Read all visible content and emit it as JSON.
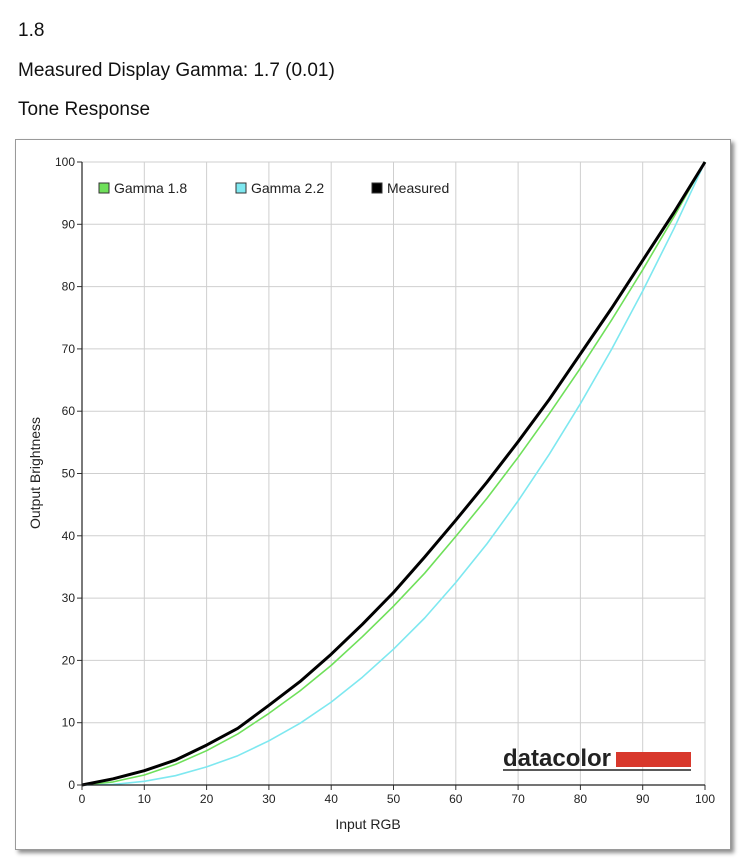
{
  "header": {
    "gamma_setting": "1.8",
    "measured_text": "Measured Display Gamma: 1.7 (0.01)",
    "section_title": "Tone Response"
  },
  "brand": {
    "name": "datacolor",
    "accent_color": "#d8382c"
  },
  "chart_data": {
    "type": "line",
    "xlabel": "Input RGB",
    "ylabel": "Output Brightness",
    "xlim": [
      0,
      100
    ],
    "ylim": [
      0,
      100
    ],
    "xticks": [
      0,
      10,
      20,
      30,
      40,
      50,
      60,
      70,
      80,
      90,
      100
    ],
    "yticks": [
      0,
      10,
      20,
      30,
      40,
      50,
      60,
      70,
      80,
      90,
      100
    ],
    "grid": true,
    "legend_position": "top-left",
    "x": [
      0,
      5,
      10,
      15,
      20,
      25,
      30,
      35,
      40,
      45,
      50,
      55,
      60,
      65,
      70,
      75,
      80,
      85,
      90,
      95,
      100
    ],
    "series": [
      {
        "name": "Gamma 1.8",
        "color": "#6fe05a",
        "values": [
          0,
          0.5,
          1.6,
          3.3,
          5.5,
          8.2,
          11.5,
          15.1,
          19.2,
          23.8,
          28.7,
          34.0,
          39.9,
          46.0,
          52.6,
          59.6,
          66.9,
          74.6,
          82.7,
          91.2,
          100
        ]
      },
      {
        "name": "Gamma 2.2",
        "color": "#7ee8f0",
        "values": [
          0,
          0.1,
          0.6,
          1.5,
          2.9,
          4.7,
          7.1,
          9.9,
          13.3,
          17.3,
          21.8,
          26.8,
          32.5,
          38.7,
          45.6,
          53.1,
          61.2,
          69.9,
          79.3,
          89.3,
          100
        ]
      },
      {
        "name": "Measured",
        "color": "#000000",
        "values": [
          0,
          1.0,
          2.3,
          4.0,
          6.4,
          9.1,
          12.8,
          16.6,
          21.0,
          25.8,
          30.9,
          36.6,
          42.5,
          48.6,
          55.1,
          61.9,
          69.2,
          76.5,
          84.2,
          91.9,
          100
        ]
      }
    ]
  }
}
